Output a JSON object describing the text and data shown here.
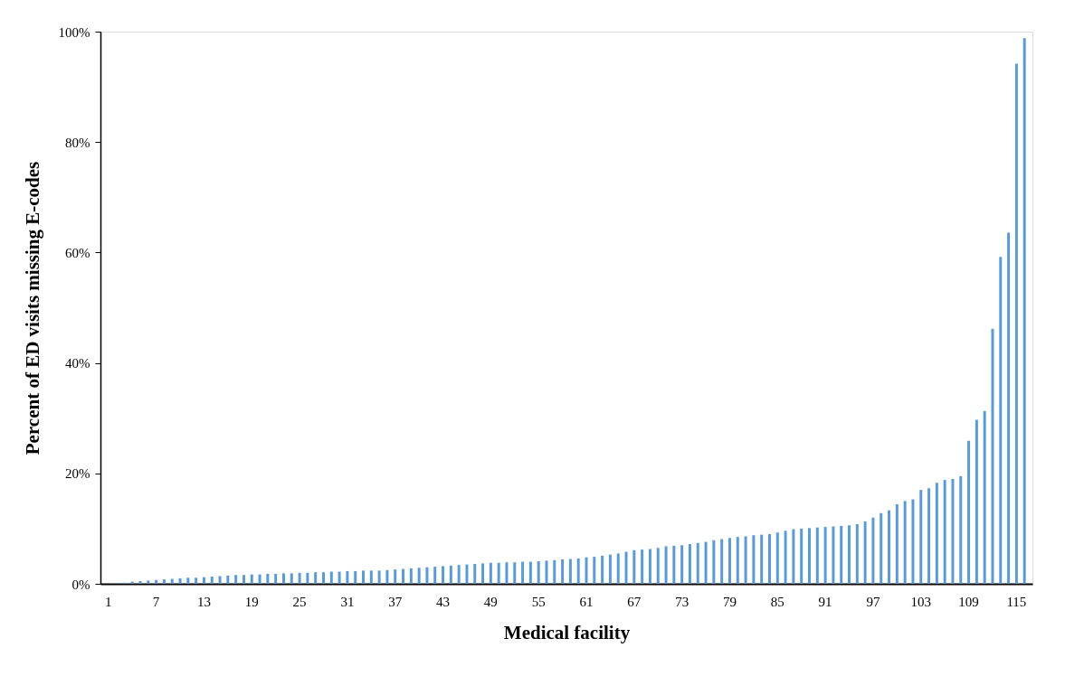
{
  "chart_data": {
    "type": "bar",
    "xlabel": "Medical facility",
    "ylabel": "Percent of ED visits missing E-codes",
    "color": "#5b9bd5",
    "categories": [
      "1",
      null,
      null,
      null,
      null,
      null,
      "7",
      null,
      null,
      null,
      null,
      null,
      "13",
      null,
      null,
      null,
      null,
      null,
      "19",
      null,
      null,
      null,
      null,
      null,
      "25",
      null,
      null,
      null,
      null,
      null,
      "31",
      null,
      null,
      null,
      null,
      null,
      "37",
      null,
      null,
      null,
      null,
      null,
      "43",
      null,
      null,
      null,
      null,
      null,
      "49",
      null,
      null,
      null,
      null,
      null,
      "55",
      null,
      null,
      null,
      null,
      null,
      "61",
      null,
      null,
      null,
      null,
      null,
      "67",
      null,
      null,
      null,
      null,
      null,
      "73",
      null,
      null,
      null,
      null,
      null,
      "79",
      null,
      null,
      null,
      null,
      null,
      "85",
      null,
      null,
      null,
      null,
      null,
      "91",
      null,
      null,
      null,
      null,
      null,
      "97",
      null,
      null,
      null,
      null,
      null,
      "103",
      null,
      null,
      null,
      null,
      null,
      "109",
      null,
      null,
      null,
      null,
      null,
      "115",
      null
    ],
    "values": [
      0,
      0.1,
      0.2,
      0.4,
      0.5,
      0.6,
      0.7,
      0.8,
      0.9,
      1.0,
      1.1,
      1.1,
      1.2,
      1.3,
      1.4,
      1.5,
      1.6,
      1.6,
      1.7,
      1.7,
      1.8,
      1.8,
      1.9,
      1.9,
      2.0,
      2.0,
      2.1,
      2.1,
      2.2,
      2.2,
      2.3,
      2.3,
      2.4,
      2.4,
      2.4,
      2.5,
      2.6,
      2.7,
      2.8,
      2.9,
      3.0,
      3.1,
      3.2,
      3.3,
      3.4,
      3.5,
      3.6,
      3.7,
      3.8,
      3.8,
      3.9,
      3.9,
      4.0,
      4.0,
      4.1,
      4.2,
      4.3,
      4.4,
      4.5,
      4.6,
      4.8,
      4.9,
      5.1,
      5.3,
      5.5,
      5.8,
      6.1,
      6.2,
      6.3,
      6.5,
      6.8,
      6.9,
      7.0,
      7.2,
      7.4,
      7.6,
      7.9,
      8.1,
      8.3,
      8.5,
      8.6,
      8.8,
      8.9,
      9.0,
      9.3,
      9.6,
      9.9,
      10.0,
      10.1,
      10.2,
      10.3,
      10.4,
      10.5,
      10.6,
      10.8,
      11.3,
      12.0,
      12.8,
      13.3,
      14.4,
      15.0,
      15.3,
      17.0,
      17.3,
      18.3,
      18.8,
      19.0,
      19.5,
      25.9,
      29.7,
      31.3,
      46.2,
      59.2,
      63.6,
      94.2,
      98.8
    ],
    "ylim": [
      0,
      100
    ],
    "yticks": [
      {
        "value": 0,
        "label": "0%"
      },
      {
        "value": 20,
        "label": "20%"
      },
      {
        "value": 40,
        "label": "40%"
      },
      {
        "value": 60,
        "label": "60%"
      },
      {
        "value": 80,
        "label": "80%"
      },
      {
        "value": 100,
        "label": "100%"
      }
    ],
    "grid": false
  }
}
